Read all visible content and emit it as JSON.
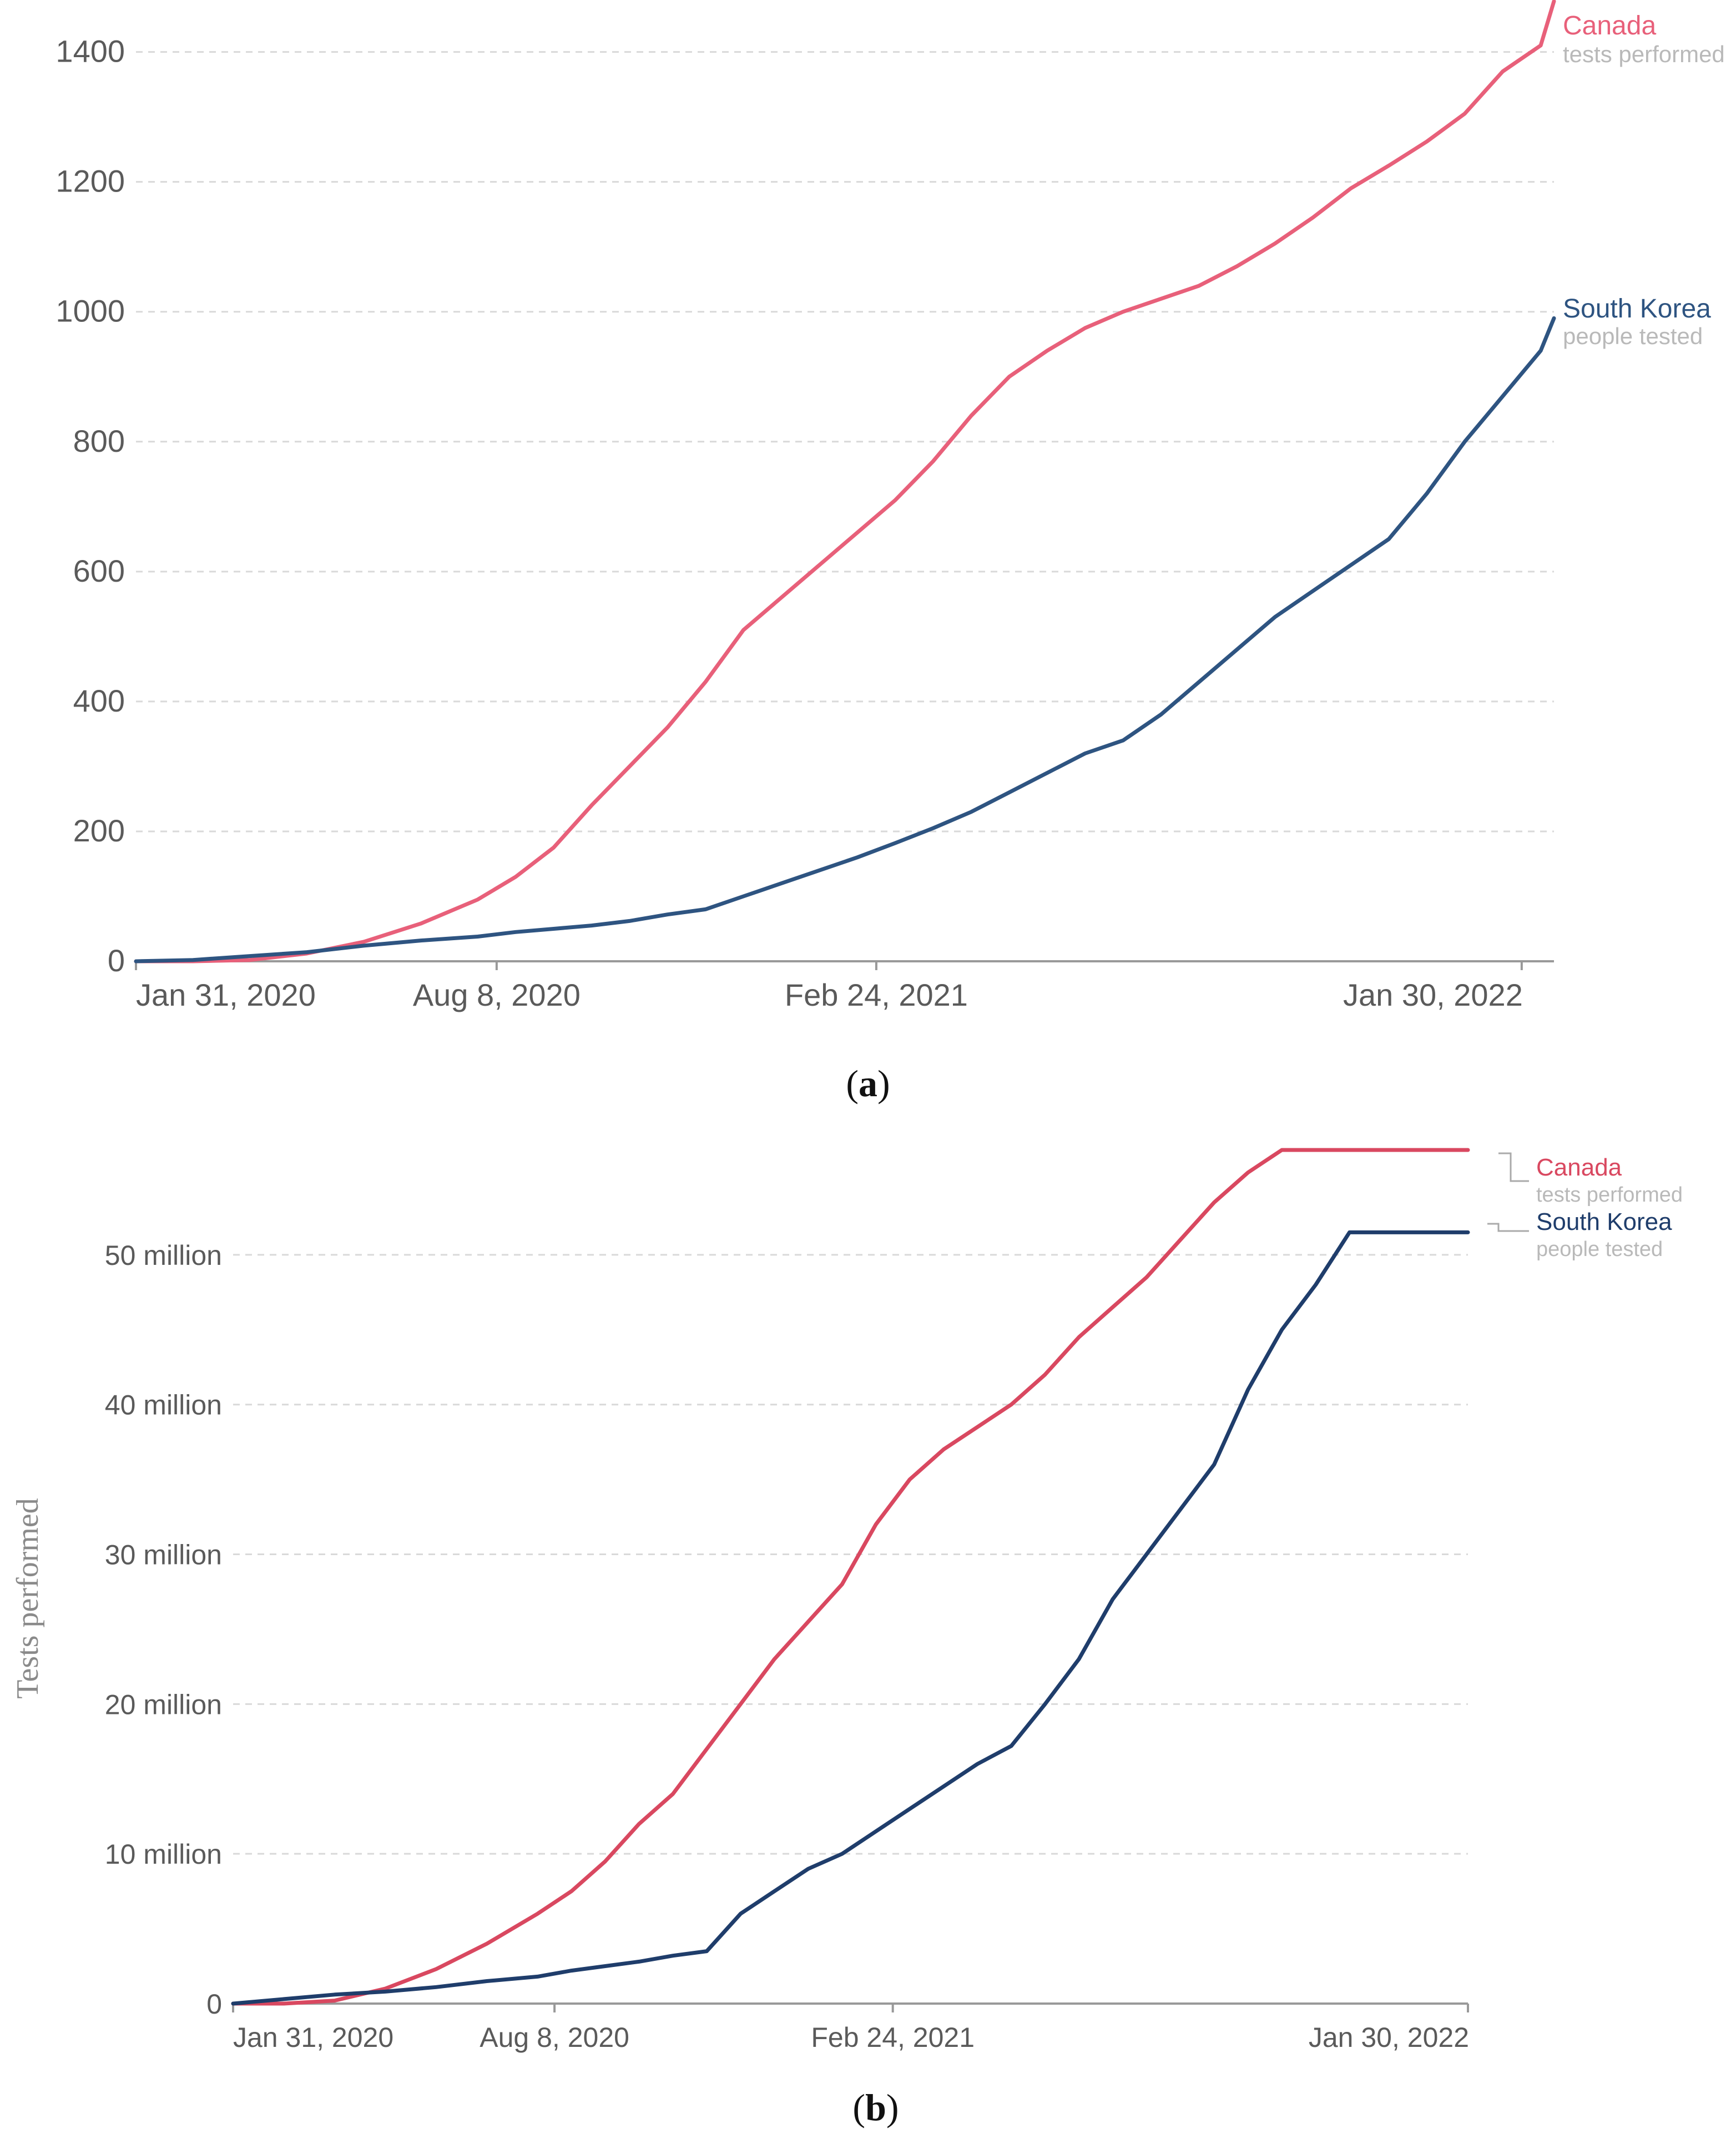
{
  "chart_data": [
    {
      "panel": "a",
      "type": "line",
      "caption": {
        "open": "(",
        "letter": "a",
        "close": ")"
      },
      "ylim": [
        0,
        1480
      ],
      "yticks": [
        0,
        200,
        400,
        600,
        800,
        1000,
        1200,
        1400
      ],
      "ytick_labels": [
        "0",
        "200",
        "400",
        "600",
        "800",
        "1000",
        "1200",
        "1400"
      ],
      "x_domain": [
        0,
        747
      ],
      "xticks": [
        {
          "day": 0,
          "label": "Jan 31, 2020"
        },
        {
          "day": 190,
          "label": "Aug 8, 2020"
        },
        {
          "day": 390,
          "label": "Feb 24, 2021"
        },
        {
          "day": 730,
          "label": "Jan 30, 2022"
        }
      ],
      "series": [
        {
          "name": "Canada",
          "sublabel": "tests performed",
          "color": "#e8607a",
          "sub_color": "#b9b9b9",
          "days": [
            0,
            30,
            60,
            90,
            120,
            150,
            180,
            200,
            220,
            240,
            260,
            280,
            300,
            320,
            340,
            360,
            380,
            400,
            420,
            440,
            460,
            480,
            500,
            520,
            540,
            560,
            580,
            600,
            620,
            640,
            660,
            680,
            700,
            720,
            740,
            747
          ],
          "values": [
            0,
            0,
            2,
            12,
            30,
            58,
            95,
            130,
            175,
            240,
            300,
            360,
            430,
            510,
            560,
            610,
            660,
            710,
            770,
            840,
            900,
            940,
            975,
            1000,
            1020,
            1040,
            1070,
            1105,
            1145,
            1190,
            1225,
            1262,
            1305,
            1370,
            1410,
            1478
          ]
        },
        {
          "name": "South Korea",
          "sublabel": "people tested",
          "color": "#2e5481",
          "sub_color": "#b9b9b9",
          "days": [
            0,
            30,
            60,
            90,
            120,
            150,
            180,
            200,
            220,
            240,
            260,
            280,
            300,
            320,
            330,
            340,
            360,
            380,
            400,
            420,
            440,
            460,
            480,
            500,
            520,
            540,
            560,
            580,
            600,
            620,
            640,
            660,
            680,
            700,
            720,
            740,
            747
          ],
          "values": [
            0,
            2,
            8,
            14,
            24,
            32,
            38,
            45,
            50,
            55,
            62,
            72,
            80,
            100,
            110,
            120,
            140,
            160,
            182,
            205,
            230,
            260,
            290,
            320,
            340,
            380,
            430,
            480,
            530,
            570,
            610,
            650,
            720,
            800,
            870,
            940,
            990
          ]
        }
      ]
    },
    {
      "panel": "b",
      "type": "line",
      "caption": {
        "open": "(",
        "letter": "b",
        "close": ")"
      },
      "ylabel": "Tests performed",
      "ylim": [
        0,
        57000000
      ],
      "yticks": [
        0,
        10000000,
        20000000,
        30000000,
        40000000,
        50000000
      ],
      "ytick_labels": [
        "0",
        "10 million",
        "20 million",
        "30 million",
        "40 million",
        "50 million"
      ],
      "x_domain": [
        0,
        730
      ],
      "xticks": [
        {
          "day": 0,
          "label": "Jan 31, 2020"
        },
        {
          "day": 190,
          "label": "Aug 8, 2020"
        },
        {
          "day": 390,
          "label": "Feb 24, 2021"
        },
        {
          "day": 730,
          "label": "Jan 30, 2022"
        }
      ],
      "series": [
        {
          "name": "Canada",
          "sublabel": "tests performed",
          "color": "#d94860",
          "sub_color": "#b9b9b9",
          "days": [
            0,
            30,
            60,
            90,
            120,
            150,
            180,
            200,
            220,
            240,
            260,
            280,
            300,
            320,
            340,
            360,
            380,
            400,
            420,
            440,
            460,
            480,
            500,
            520,
            540,
            560,
            580,
            600,
            620,
            640,
            660,
            680,
            700,
            720,
            730
          ],
          "values": [
            0,
            0,
            200000,
            1000000,
            2300000,
            4000000,
            6000000,
            7500000,
            9500000,
            12000000,
            14000000,
            17000000,
            20000000,
            23000000,
            25500000,
            28000000,
            32000000,
            35000000,
            37000000,
            38500000,
            40000000,
            42000000,
            44500000,
            46500000,
            48500000,
            51000000,
            53500000,
            55500000,
            57000000,
            57000000,
            57000000,
            57000000,
            57000000,
            57000000,
            57000000
          ]
        },
        {
          "name": "South Korea",
          "sublabel": "people tested",
          "color": "#1f3d6b",
          "sub_color": "#b9b9b9",
          "days": [
            0,
            30,
            60,
            90,
            120,
            150,
            180,
            200,
            220,
            240,
            260,
            280,
            300,
            320,
            340,
            360,
            380,
            400,
            420,
            440,
            460,
            480,
            500,
            520,
            540,
            560,
            580,
            600,
            620,
            640,
            660,
            680,
            700,
            720,
            730
          ],
          "values": [
            0,
            300000,
            600000,
            800000,
            1100000,
            1500000,
            1800000,
            2200000,
            2500000,
            2800000,
            3200000,
            3500000,
            6000000,
            7500000,
            9000000,
            10000000,
            11500000,
            13000000,
            14500000,
            16000000,
            17200000,
            20000000,
            23000000,
            27000000,
            30000000,
            33000000,
            36000000,
            41000000,
            45000000,
            48000000,
            51500000,
            51500000,
            51500000,
            51500000,
            51500000
          ]
        }
      ]
    }
  ]
}
